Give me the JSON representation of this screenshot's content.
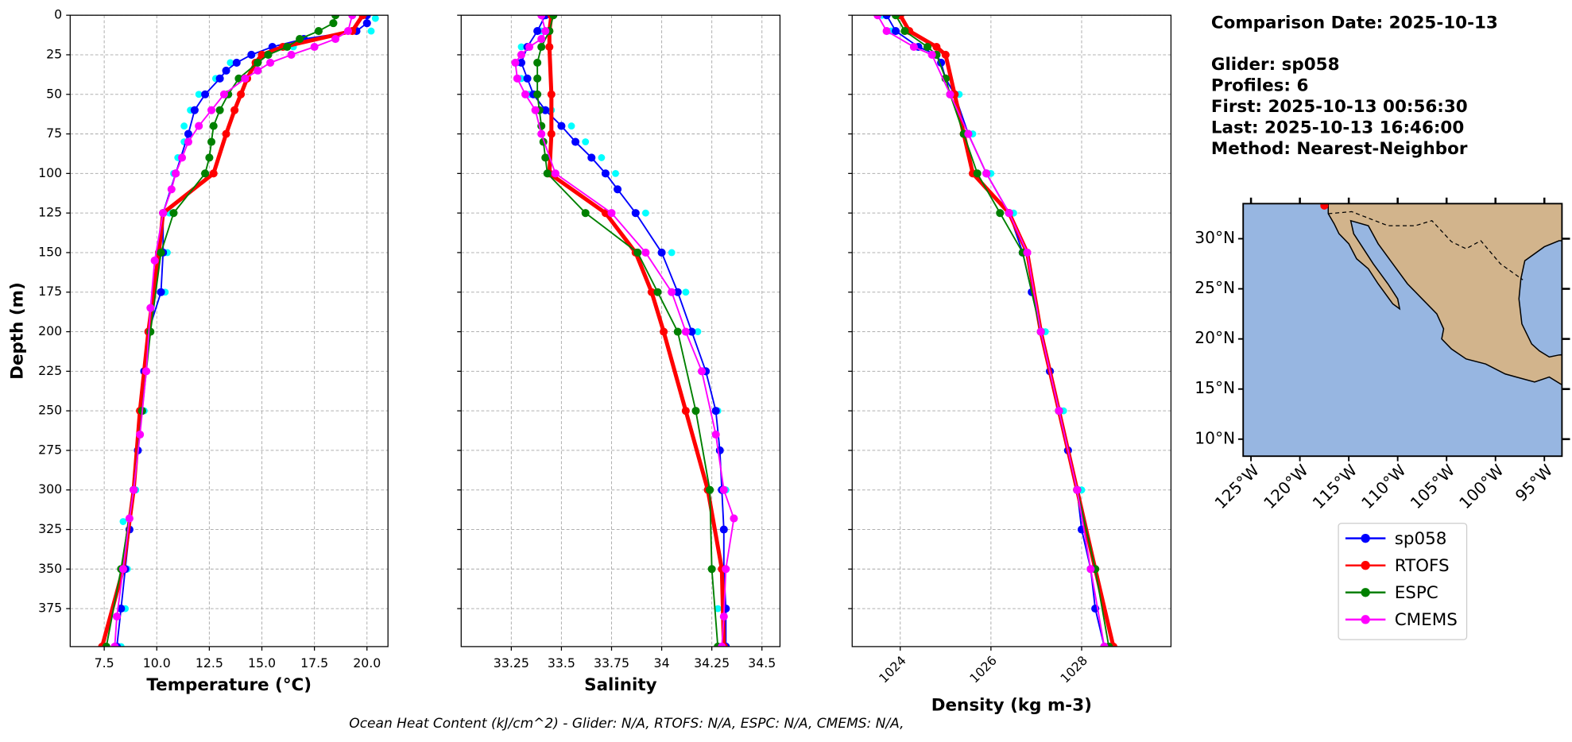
{
  "chart_data": [
    {
      "type": "profile",
      "xlabel": "Temperature (°C)",
      "ylabel": "Depth (m)",
      "xlim": [
        5.88,
        21.0
      ],
      "xticks": [
        {
          "value": 7.5,
          "label": "7.5"
        },
        {
          "value": 10,
          "label": "10.0"
        },
        {
          "value": 12.5,
          "label": "12.5"
        },
        {
          "value": 15,
          "label": "15.0"
        },
        {
          "value": 17.5,
          "label": "17.5"
        },
        {
          "value": 20,
          "label": "20.0"
        }
      ],
      "ylim": [
        399,
        0
      ],
      "yticks": [
        0,
        25,
        50,
        75,
        100,
        125,
        150,
        175,
        200,
        225,
        250,
        275,
        300,
        325,
        350,
        375
      ],
      "grid": true,
      "series": [
        {
          "color": "#00ffff",
          "linewidth": 0,
          "y": [
            2,
            10,
            20,
            30,
            40,
            50,
            60,
            70,
            80,
            90,
            100,
            125,
            150,
            175,
            200,
            250,
            300,
            320,
            350,
            375,
            399
          ],
          "x": [
            20.4,
            20.2,
            16.5,
            13.5,
            12.8,
            12.0,
            11.6,
            11.3,
            11.3,
            11.0,
            10.8,
            10.6,
            10.5,
            10.4,
            9.7,
            9.4,
            9.0,
            8.4,
            8.6,
            8.5,
            8.3
          ]
        },
        {
          "name": "sp058",
          "color": "#0000ff",
          "linewidth": 1.5,
          "y": [
            0,
            5,
            10,
            15,
            20,
            25,
            30,
            35,
            40,
            50,
            60,
            75,
            100,
            125,
            150,
            175,
            200,
            225,
            250,
            275,
            300,
            325,
            350,
            375,
            399
          ],
          "x": [
            20.0,
            20.0,
            19.5,
            17.0,
            15.5,
            14.5,
            13.8,
            13.3,
            13.0,
            12.3,
            11.8,
            11.5,
            10.9,
            10.3,
            10.3,
            10.2,
            9.6,
            9.4,
            9.3,
            9.1,
            8.9,
            8.7,
            8.5,
            8.3,
            8.1
          ]
        },
        {
          "name": "RTOFS",
          "color": "#ff0000",
          "linewidth": 4,
          "y": [
            0,
            10,
            20,
            25,
            30,
            40,
            50,
            60,
            75,
            100,
            125,
            150,
            200,
            250,
            300,
            350,
            399
          ],
          "x": [
            19.8,
            19.3,
            16.0,
            15.0,
            14.7,
            14.3,
            14.0,
            13.7,
            13.3,
            12.7,
            10.3,
            10.1,
            9.6,
            9.2,
            8.9,
            8.4,
            7.4
          ]
        },
        {
          "name": "ESPC",
          "color": "#008000",
          "linewidth": 1.5,
          "y": [
            0,
            5,
            10,
            15,
            20,
            25,
            30,
            40,
            50,
            60,
            70,
            80,
            90,
            100,
            125,
            150,
            200,
            250,
            300,
            350,
            399
          ],
          "x": [
            18.5,
            18.4,
            17.7,
            16.8,
            16.2,
            15.3,
            14.8,
            13.9,
            13.4,
            13.0,
            12.7,
            12.6,
            12.5,
            12.3,
            10.8,
            10.2,
            9.7,
            9.3,
            8.9,
            8.3,
            7.6
          ]
        },
        {
          "name": "CMEMS",
          "color": "#ff00ff",
          "linewidth": 1.5,
          "y": [
            0,
            10,
            15,
            20,
            25,
            30,
            35,
            40,
            50,
            60,
            70,
            80,
            90,
            100,
            110,
            125,
            155,
            185,
            225,
            265,
            300,
            318,
            350,
            380,
            399
          ],
          "x": [
            19.3,
            19.1,
            18.5,
            17.5,
            16.4,
            15.4,
            14.8,
            14.2,
            13.2,
            12.6,
            12.0,
            11.5,
            11.2,
            10.9,
            10.7,
            10.3,
            9.9,
            9.7,
            9.5,
            9.2,
            8.9,
            8.7,
            8.4,
            8.1,
            8.0
          ]
        }
      ]
    },
    {
      "type": "profile",
      "xlabel": "Salinity",
      "xlim": [
        33.0,
        34.59
      ],
      "xticks": [
        33.25,
        33.5,
        33.75,
        34.0,
        34.25,
        34.5
      ],
      "grid": true,
      "series": [
        {
          "color": "#00ffff",
          "linewidth": 0,
          "y": [
            0,
            10,
            20,
            30,
            40,
            50,
            60,
            70,
            80,
            90,
            100,
            125,
            150,
            175,
            200,
            250,
            300,
            350,
            375,
            399
          ],
          "x": [
            33.46,
            33.4,
            33.3,
            33.28,
            33.3,
            33.34,
            33.45,
            33.55,
            33.62,
            33.7,
            33.77,
            33.92,
            34.05,
            34.12,
            34.18,
            34.28,
            34.32,
            34.3,
            34.28,
            34.3
          ]
        },
        {
          "name": "sp058",
          "color": "#0000ff",
          "linewidth": 1.5,
          "y": [
            0,
            10,
            20,
            30,
            40,
            50,
            60,
            70,
            80,
            90,
            100,
            110,
            125,
            150,
            175,
            200,
            225,
            250,
            275,
            300,
            325,
            350,
            375,
            399
          ],
          "x": [
            33.42,
            33.38,
            33.33,
            33.3,
            33.33,
            33.36,
            33.42,
            33.5,
            33.57,
            33.65,
            33.72,
            33.78,
            33.87,
            34.0,
            34.08,
            34.15,
            34.22,
            34.27,
            34.29,
            34.3,
            34.31,
            34.31,
            34.32,
            34.32
          ]
        },
        {
          "name": "RTOFS",
          "color": "#ff0000",
          "linewidth": 4,
          "y": [
            0,
            10,
            20,
            50,
            75,
            100,
            125,
            150,
            175,
            200,
            250,
            300,
            350,
            399
          ],
          "x": [
            33.45,
            33.44,
            33.44,
            33.45,
            33.45,
            33.44,
            33.72,
            33.87,
            33.95,
            34.01,
            34.12,
            34.23,
            34.3,
            34.31
          ]
        },
        {
          "name": "ESPC",
          "color": "#008000",
          "linewidth": 1.5,
          "y": [
            0,
            10,
            20,
            30,
            40,
            50,
            60,
            70,
            80,
            90,
            100,
            125,
            150,
            175,
            200,
            250,
            300,
            350,
            399
          ],
          "x": [
            33.46,
            33.44,
            33.4,
            33.38,
            33.38,
            33.38,
            33.39,
            33.4,
            33.41,
            33.42,
            33.43,
            33.62,
            33.88,
            33.98,
            34.08,
            34.17,
            34.24,
            34.25,
            34.28
          ]
        },
        {
          "name": "CMEMS",
          "color": "#ff00ff",
          "linewidth": 1.5,
          "y": [
            0,
            10,
            15,
            20,
            25,
            30,
            40,
            50,
            60,
            75,
            100,
            125,
            150,
            175,
            200,
            225,
            265,
            300,
            318,
            350,
            380,
            399
          ],
          "x": [
            33.4,
            33.42,
            33.4,
            33.34,
            33.3,
            33.27,
            33.28,
            33.32,
            33.37,
            33.4,
            33.47,
            33.75,
            33.92,
            34.05,
            34.12,
            34.2,
            34.27,
            34.31,
            34.36,
            34.32,
            34.31,
            34.3
          ]
        }
      ]
    },
    {
      "type": "profile",
      "xlabel": "Density (kg m-3)",
      "xtick_rotation": 45,
      "xlim": [
        1022.94,
        1029.97
      ],
      "xticks": [
        1024,
        1026,
        1028
      ],
      "grid": true,
      "series": [
        {
          "color": "#00ffff",
          "linewidth": 0,
          "y": [
            0,
            10,
            20,
            30,
            50,
            75,
            100,
            125,
            150,
            200,
            250,
            300,
            350,
            399
          ],
          "x": [
            1023.6,
            1023.8,
            1024.3,
            1024.9,
            1025.3,
            1025.6,
            1026.0,
            1026.5,
            1026.8,
            1027.2,
            1027.6,
            1028.0,
            1028.3,
            1028.5
          ]
        },
        {
          "name": "sp058",
          "color": "#0000ff",
          "linewidth": 1.5,
          "y": [
            0,
            10,
            20,
            25,
            30,
            40,
            50,
            75,
            100,
            125,
            150,
            175,
            200,
            225,
            250,
            275,
            300,
            325,
            350,
            375,
            399
          ],
          "x": [
            1023.7,
            1023.9,
            1024.4,
            1024.8,
            1024.9,
            1025.0,
            1025.2,
            1025.5,
            1025.9,
            1026.4,
            1026.7,
            1026.9,
            1027.1,
            1027.3,
            1027.5,
            1027.7,
            1027.9,
            1028.0,
            1028.2,
            1028.3,
            1028.5
          ]
        },
        {
          "name": "RTOFS",
          "color": "#ff0000",
          "linewidth": 4,
          "y": [
            0,
            10,
            20,
            25,
            50,
            75,
            100,
            125,
            150,
            200,
            250,
            300,
            350,
            399
          ],
          "x": [
            1024.0,
            1024.2,
            1024.8,
            1025.0,
            1025.2,
            1025.4,
            1025.6,
            1026.4,
            1026.8,
            1027.1,
            1027.5,
            1027.9,
            1028.3,
            1028.7
          ]
        },
        {
          "name": "ESPC",
          "color": "#008000",
          "linewidth": 1.5,
          "y": [
            0,
            10,
            20,
            25,
            40,
            50,
            75,
            100,
            125,
            150,
            200,
            250,
            300,
            350,
            399
          ],
          "x": [
            1023.9,
            1024.1,
            1024.6,
            1024.8,
            1025.0,
            1025.1,
            1025.4,
            1025.7,
            1026.2,
            1026.7,
            1027.1,
            1027.5,
            1027.9,
            1028.3,
            1028.6
          ]
        },
        {
          "name": "CMEMS",
          "color": "#ff00ff",
          "linewidth": 1.5,
          "y": [
            0,
            10,
            20,
            25,
            50,
            75,
            100,
            125,
            150,
            200,
            250,
            300,
            350,
            399
          ],
          "x": [
            1023.5,
            1023.7,
            1024.3,
            1024.7,
            1025.1,
            1025.5,
            1025.9,
            1026.4,
            1026.8,
            1027.1,
            1027.5,
            1027.9,
            1028.2,
            1028.5
          ]
        }
      ]
    },
    {
      "type": "map",
      "ocean_color": "#97b6e1",
      "land_color": "#d2b48c",
      "xlim": [
        -125.8,
        -93.2
      ],
      "ylim": [
        8.3,
        33.5
      ],
      "xticks": [
        {
          "value": -125,
          "label": "125°W"
        },
        {
          "value": -120,
          "label": "120°W"
        },
        {
          "value": -115,
          "label": "115°W"
        },
        {
          "value": -110,
          "label": "110°W"
        },
        {
          "value": -105,
          "label": "105°W"
        },
        {
          "value": -100,
          "label": "100°W"
        },
        {
          "value": -95,
          "label": "95°W"
        }
      ],
      "yticks": [
        {
          "value": 10,
          "label": "10°N"
        },
        {
          "value": 15,
          "label": "15°N"
        },
        {
          "value": 20,
          "label": "20°N"
        },
        {
          "value": 25,
          "label": "25°N"
        },
        {
          "value": 30,
          "label": "30°N"
        }
      ],
      "points": {
        "x": [
          -117.5
        ],
        "y": [
          33.3
        ],
        "color": "#ff0000"
      }
    }
  ],
  "info": [
    "Comparison Date: 2025-10-13",
    "Glider: sp058",
    "Profiles: 6",
    "First: 2025-10-13 00:56:30",
    "Last: 2025-10-13 16:46:00",
    "Method: Nearest-Neighbor"
  ],
  "footer": "Ocean Heat Content (kJ/cm^2) - Glider: N/A,  RTOFS: N/A,  ESPC: N/A,  CMEMS: N/A,"
}
